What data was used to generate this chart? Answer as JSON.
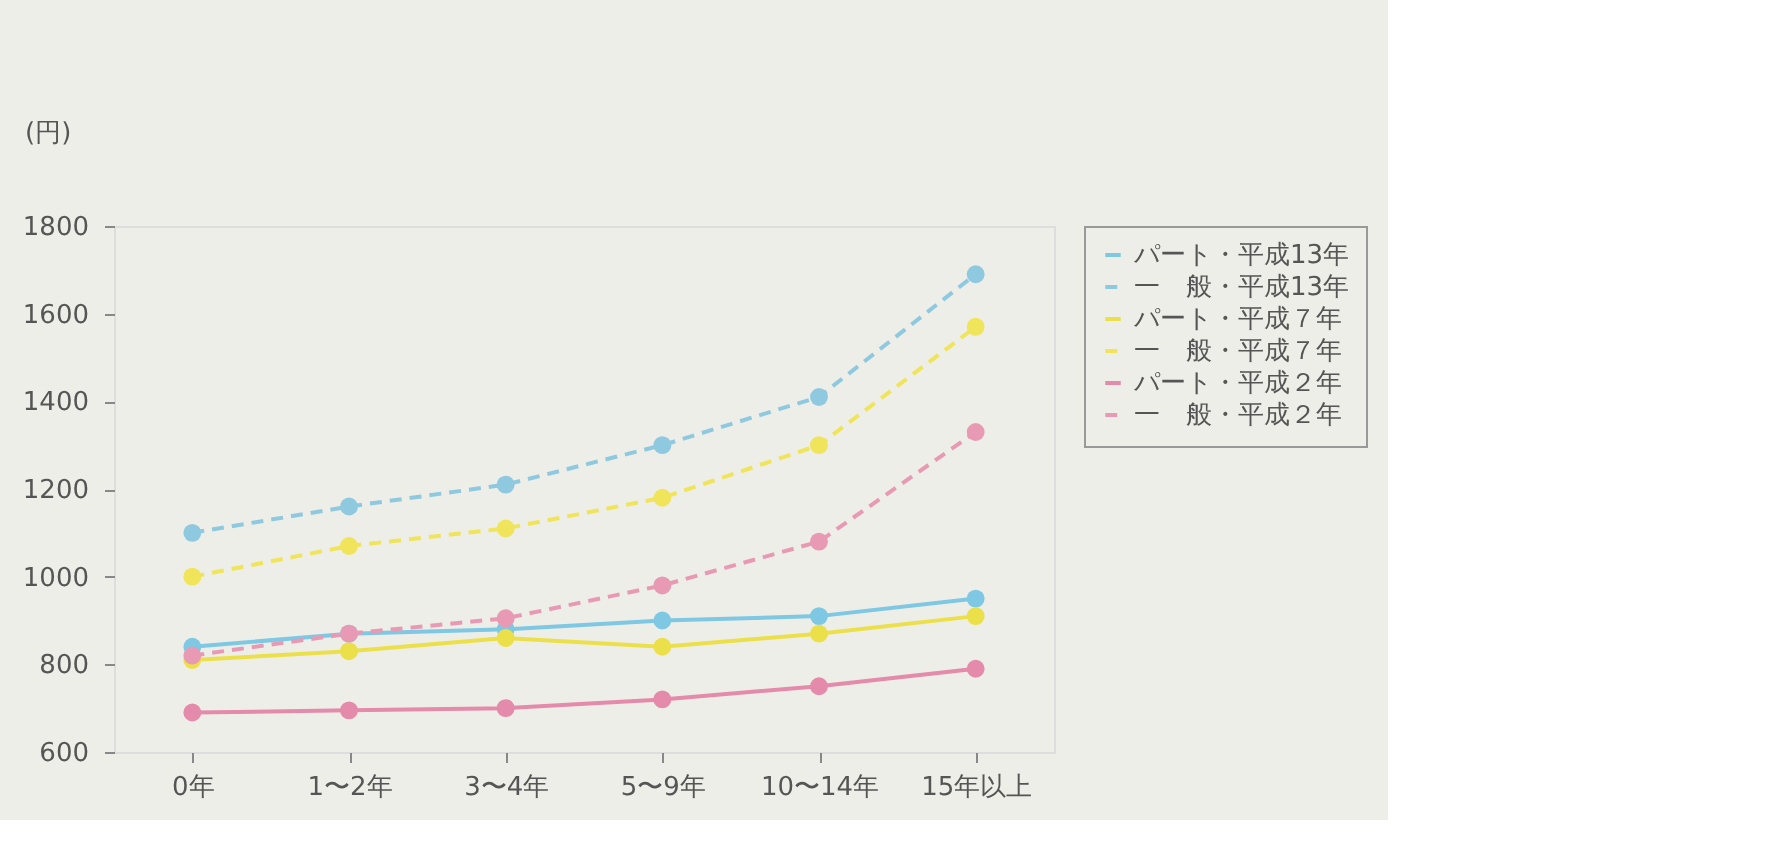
{
  "chart_data": {
    "type": "line",
    "ylabel": "(円)",
    "categories": [
      "0年",
      "1〜2年",
      "3〜4年",
      "5〜9年",
      "10〜14年",
      "15年以上"
    ],
    "ylim": [
      600,
      1800
    ],
    "yticks": [
      600,
      800,
      1000,
      1200,
      1400,
      1600,
      1800
    ],
    "grid": false,
    "legend": "right",
    "marker": "circle",
    "series": [
      {
        "name": "パート・平成13年",
        "color": "#7ec8e3",
        "line_style": "solid",
        "values": [
          840,
          870,
          880,
          900,
          910,
          950
        ]
      },
      {
        "name": "一　般・平成13年",
        "color": "#8fc9e0",
        "line_style": "dashed",
        "values": [
          1100,
          1160,
          1210,
          1300,
          1410,
          1690
        ]
      },
      {
        "name": "パート・平成７年",
        "color": "#ece04a",
        "line_style": "solid",
        "values": [
          810,
          830,
          860,
          840,
          870,
          910
        ]
      },
      {
        "name": "一　般・平成７年",
        "color": "#f0e45a",
        "line_style": "dashed",
        "values": [
          1000,
          1070,
          1110,
          1180,
          1300,
          1570
        ]
      },
      {
        "name": "パート・平成２年",
        "color": "#e48aaa",
        "line_style": "solid",
        "values": [
          690,
          695,
          700,
          720,
          750,
          790
        ]
      },
      {
        "name": "一　般・平成２年",
        "color": "#e89ab4",
        "line_style": "dashed",
        "values": [
          820,
          870,
          905,
          980,
          1080,
          1330
        ]
      }
    ]
  }
}
